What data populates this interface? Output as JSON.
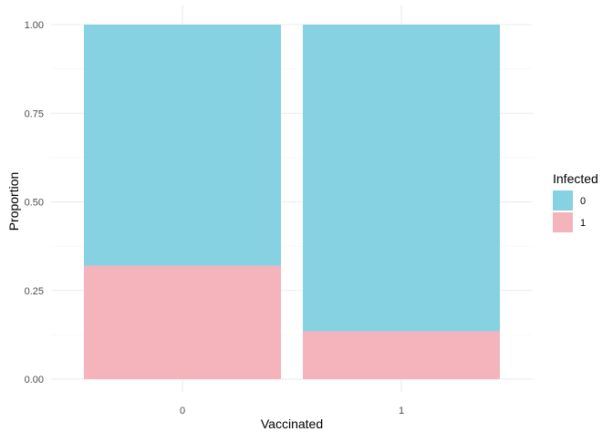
{
  "chart_data": {
    "type": "bar",
    "stacked": true,
    "categories": [
      "0",
      "1"
    ],
    "series": [
      {
        "name": "0",
        "values": [
          0.68,
          0.865
        ],
        "color": "#87d2e2"
      },
      {
        "name": "1",
        "values": [
          0.32,
          0.135
        ],
        "color": "#f5b3bc"
      }
    ],
    "xlabel": "Vaccinated",
    "ylabel": "Proportion",
    "ylim": [
      0,
      1
    ],
    "yticks": [
      "0.00",
      "0.25",
      "0.50",
      "0.75",
      "1.00"
    ],
    "grid": true,
    "legend": {
      "title": "Infected",
      "position": "right"
    }
  }
}
